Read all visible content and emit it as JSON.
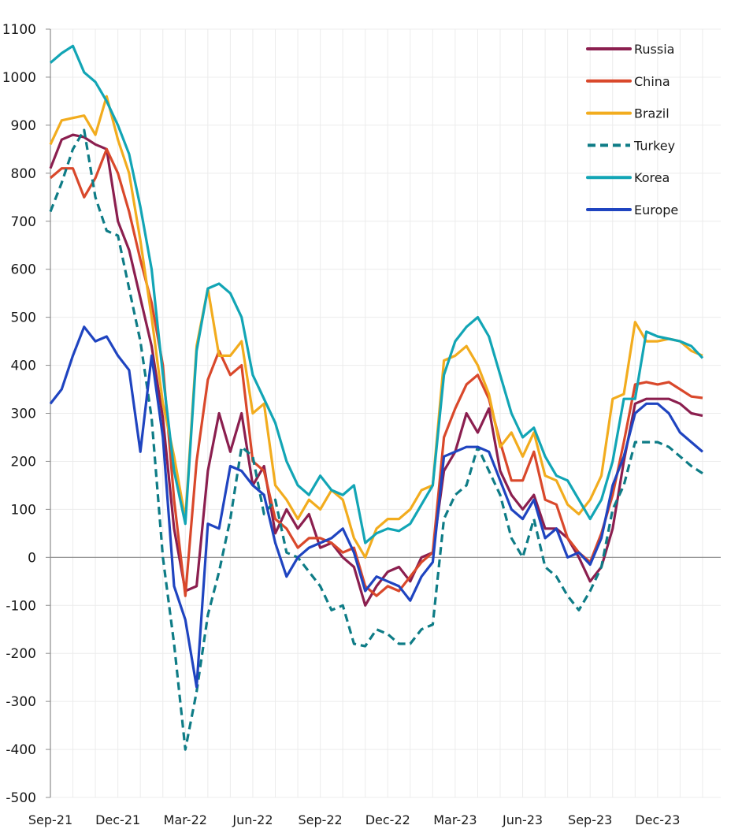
{
  "chart_data": {
    "type": "line",
    "title": "",
    "xlabel": "",
    "ylabel": "",
    "ylim": [
      -500,
      1100
    ],
    "yticks": [
      1100,
      1000,
      900,
      800,
      700,
      600,
      500,
      400,
      300,
      200,
      100,
      0,
      -100,
      -200,
      -300,
      -400,
      -500
    ],
    "xticks": [
      "Sep-21",
      "Dec-21",
      "Mar-22",
      "Jun-22",
      "Sep-22",
      "Dec-22",
      "Mar-23",
      "Jun-23",
      "Sep-23",
      "Dec-23"
    ],
    "x_unit": "months since Sep-21",
    "xlim": [
      0,
      30
    ],
    "grid": true,
    "legend_position": "top-right",
    "series": [
      {
        "name": "Russia",
        "color": "#8B1F4F",
        "dash": false,
        "x": [
          0,
          0.5,
          1,
          1.5,
          2,
          2.5,
          3,
          3.5,
          4,
          4.5,
          5,
          5.5,
          6,
          6.5,
          7,
          7.5,
          8,
          8.5,
          9,
          9.5,
          10,
          10.5,
          11,
          11.5,
          12,
          12.5,
          13,
          13.5,
          14,
          14.5,
          15,
          15.5,
          16,
          16.5,
          17,
          17.5,
          18,
          18.5,
          19,
          19.5,
          20,
          20.5,
          21,
          21.5,
          22,
          22.5,
          23,
          23.5,
          24,
          24.5,
          25,
          25.5,
          26,
          26.5,
          27,
          27.5,
          28,
          28.5,
          29
        ],
        "y": [
          810,
          870,
          880,
          875,
          860,
          850,
          700,
          640,
          540,
          440,
          290,
          60,
          -70,
          -60,
          180,
          300,
          220,
          300,
          150,
          190,
          50,
          100,
          60,
          90,
          20,
          30,
          0,
          -20,
          -100,
          -60,
          -30,
          -20,
          -50,
          0,
          10,
          180,
          220,
          300,
          260,
          310,
          180,
          130,
          100,
          130,
          60,
          60,
          40,
          0,
          -50,
          -20,
          60,
          200,
          320,
          330,
          330,
          330,
          320,
          300,
          295
        ]
      },
      {
        "name": "China",
        "color": "#D9482B",
        "dash": false,
        "x": [
          0,
          0.5,
          1,
          1.5,
          2,
          2.5,
          3,
          3.5,
          4,
          4.5,
          5,
          5.5,
          6,
          6.5,
          7,
          7.5,
          8,
          8.5,
          9,
          9.5,
          10,
          10.5,
          11,
          11.5,
          12,
          12.5,
          13,
          13.5,
          14,
          14.5,
          15,
          15.5,
          16,
          16.5,
          17,
          17.5,
          18,
          18.5,
          19,
          19.5,
          20,
          20.5,
          21,
          21.5,
          22,
          22.5,
          23,
          23.5,
          24,
          24.5,
          25,
          25.5,
          26,
          26.5,
          27,
          27.5,
          28,
          28.5,
          29
        ],
        "y": [
          790,
          810,
          810,
          750,
          790,
          850,
          800,
          720,
          620,
          530,
          400,
          120,
          -80,
          200,
          370,
          430,
          380,
          400,
          200,
          180,
          80,
          60,
          20,
          40,
          40,
          30,
          10,
          20,
          -60,
          -80,
          -60,
          -70,
          -40,
          -10,
          10,
          250,
          310,
          360,
          380,
          330,
          240,
          160,
          160,
          220,
          120,
          110,
          40,
          10,
          -10,
          50,
          130,
          240,
          360,
          365,
          360,
          365,
          350,
          335,
          332
        ]
      },
      {
        "name": "Brazil",
        "color": "#F2AC1E",
        "dash": false,
        "x": [
          0,
          0.5,
          1,
          1.5,
          2,
          2.5,
          3,
          3.5,
          4,
          4.5,
          5,
          5.5,
          6,
          6.5,
          7,
          7.5,
          8,
          8.5,
          9,
          9.5,
          10,
          10.5,
          11,
          11.5,
          12,
          12.5,
          13,
          13.5,
          14,
          14.5,
          15,
          15.5,
          16,
          16.5,
          17,
          17.5,
          18,
          18.5,
          19,
          19.5,
          20,
          20.5,
          21,
          21.5,
          22,
          22.5,
          23,
          23.5,
          24,
          24.5,
          25,
          25.5,
          26,
          26.5,
          27,
          27.5,
          28,
          28.5,
          29
        ],
        "y": [
          860,
          910,
          915,
          920,
          880,
          960,
          870,
          800,
          660,
          500,
          320,
          210,
          80,
          440,
          560,
          420,
          420,
          450,
          300,
          320,
          150,
          120,
          80,
          120,
          100,
          140,
          120,
          40,
          0,
          60,
          80,
          80,
          100,
          140,
          150,
          410,
          420,
          440,
          400,
          340,
          230,
          260,
          210,
          260,
          170,
          160,
          110,
          90,
          120,
          170,
          330,
          340,
          490,
          450,
          450,
          455,
          450,
          430,
          420
        ]
      },
      {
        "name": "Turkey",
        "color": "#0E7C86",
        "dash": true,
        "x": [
          0,
          0.5,
          1,
          1.5,
          2,
          2.5,
          3,
          3.5,
          4,
          4.5,
          5,
          5.5,
          6,
          6.5,
          7,
          7.5,
          8,
          8.5,
          9,
          9.5,
          10,
          10.5,
          11,
          11.5,
          12,
          12.5,
          13,
          13.5,
          14,
          14.5,
          15,
          15.5,
          16,
          16.5,
          17,
          17.5,
          18,
          18.5,
          19,
          19.5,
          20,
          20.5,
          21,
          21.5,
          22,
          22.5,
          23,
          23.5,
          24,
          24.5,
          25,
          25.5,
          26,
          26.5,
          27,
          27.5,
          28,
          28.5,
          29
        ],
        "y": [
          720,
          780,
          850,
          890,
          750,
          680,
          670,
          560,
          450,
          290,
          0,
          -180,
          -400,
          -280,
          -120,
          -30,
          80,
          230,
          210,
          90,
          120,
          10,
          0,
          -30,
          -60,
          -110,
          -100,
          -180,
          -185,
          -150,
          -160,
          -180,
          -180,
          -150,
          -140,
          80,
          130,
          150,
          230,
          180,
          130,
          40,
          0,
          80,
          -20,
          -40,
          -80,
          -110,
          -70,
          -20,
          100,
          150,
          240,
          240,
          240,
          230,
          210,
          190,
          175
        ]
      },
      {
        "name": "Korea",
        "color": "#12A5B5",
        "dash": false,
        "x": [
          0,
          0.5,
          1,
          1.5,
          2,
          2.5,
          3,
          3.5,
          4,
          4.5,
          5,
          5.5,
          6,
          6.5,
          7,
          7.5,
          8,
          8.5,
          9,
          9.5,
          10,
          10.5,
          11,
          11.5,
          12,
          12.5,
          13,
          13.5,
          14,
          14.5,
          15,
          15.5,
          16,
          16.5,
          17,
          17.5,
          18,
          18.5,
          19,
          19.5,
          20,
          20.5,
          21,
          21.5,
          22,
          22.5,
          23,
          23.5,
          24,
          24.5,
          25,
          25.5,
          26,
          26.5,
          27,
          27.5,
          28,
          28.5,
          29
        ],
        "y": [
          1030,
          1050,
          1065,
          1010,
          990,
          950,
          900,
          840,
          730,
          600,
          380,
          180,
          70,
          430,
          560,
          570,
          550,
          500,
          380,
          330,
          280,
          200,
          150,
          130,
          170,
          140,
          130,
          150,
          30,
          50,
          60,
          55,
          70,
          110,
          150,
          380,
          450,
          480,
          500,
          460,
          380,
          300,
          250,
          270,
          210,
          170,
          160,
          120,
          80,
          120,
          200,
          330,
          330,
          470,
          460,
          455,
          450,
          440,
          415
        ]
      },
      {
        "name": "Europe",
        "color": "#1F44C0",
        "dash": false,
        "x": [
          0,
          0.5,
          1,
          1.5,
          2,
          2.5,
          3,
          3.5,
          4,
          4.5,
          5,
          5.5,
          6,
          6.5,
          7,
          7.5,
          8,
          8.5,
          9,
          9.5,
          10,
          10.5,
          11,
          11.5,
          12,
          12.5,
          13,
          13.5,
          14,
          14.5,
          15,
          15.5,
          16,
          16.5,
          17,
          17.5,
          18,
          18.5,
          19,
          19.5,
          20,
          20.5,
          21,
          21.5,
          22,
          22.5,
          23,
          23.5,
          24,
          24.5,
          25,
          25.5,
          26,
          26.5,
          27,
          27.5,
          28,
          28.5,
          29
        ],
        "y": [
          320,
          350,
          420,
          480,
          450,
          460,
          420,
          390,
          220,
          420,
          250,
          -60,
          -130,
          -270,
          70,
          60,
          190,
          180,
          150,
          130,
          30,
          -40,
          0,
          20,
          30,
          40,
          60,
          10,
          -70,
          -40,
          -50,
          -60,
          -90,
          -40,
          -10,
          210,
          220,
          230,
          230,
          220,
          160,
          100,
          80,
          120,
          40,
          60,
          0,
          10,
          -15,
          40,
          150,
          210,
          300,
          320,
          320,
          300,
          260,
          240,
          220
        ]
      }
    ]
  }
}
